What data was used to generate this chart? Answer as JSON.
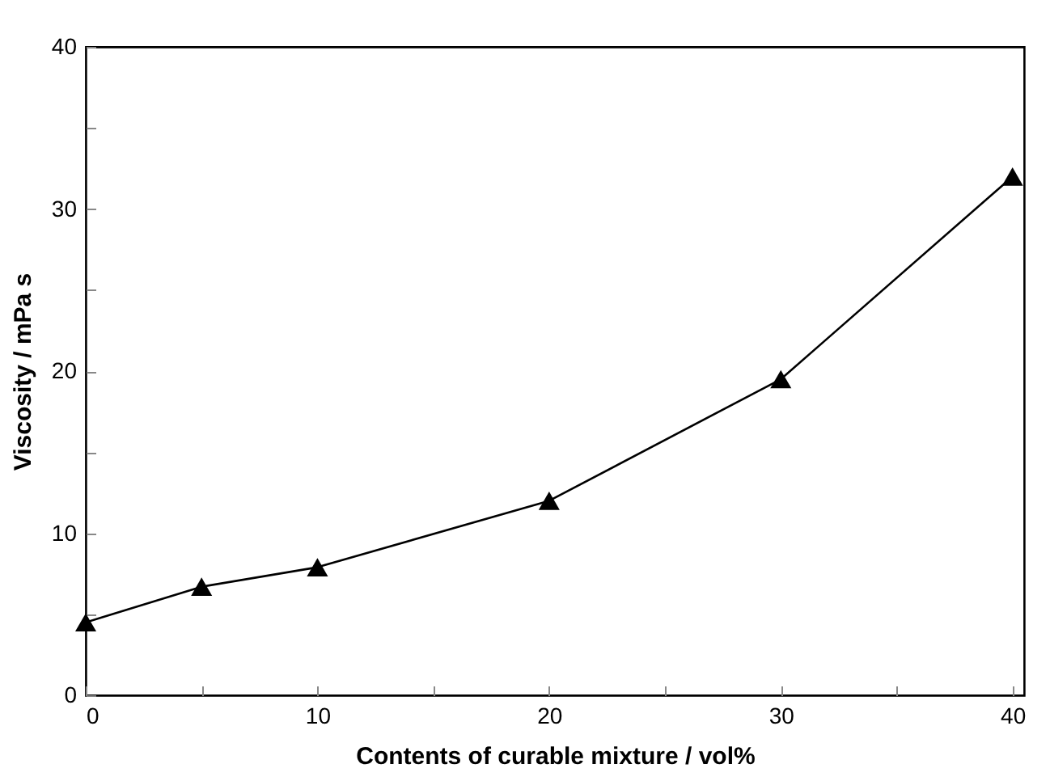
{
  "chart_data": {
    "type": "line",
    "xlabel": "Contents of curable mixture / vol%",
    "ylabel": "Viscosity / mPa s",
    "x": [
      0,
      5,
      10,
      20,
      30,
      40
    ],
    "series": [
      {
        "color": "#000000",
        "values": [
          4.5,
          6.7,
          7.9,
          12,
          19.5,
          32
        ]
      }
    ],
    "xlim": [
      0,
      40.5
    ],
    "ylim": [
      0,
      40
    ],
    "xticks": [
      0,
      {
        "value": 5,
        "label": null
      },
      10,
      {
        "value": 15,
        "label": null
      },
      20,
      {
        "value": 25,
        "label": null
      },
      30,
      {
        "value": 35,
        "label": null
      },
      40
    ],
    "yticks": [
      0,
      {
        "value": 5,
        "label": null
      },
      10,
      {
        "value": 15,
        "label": null
      },
      20,
      {
        "value": 25,
        "label": null
      },
      30,
      {
        "value": 35,
        "label": null
      },
      40
    ],
    "marker": "triangle",
    "line_style": "solid",
    "grid": false
  }
}
